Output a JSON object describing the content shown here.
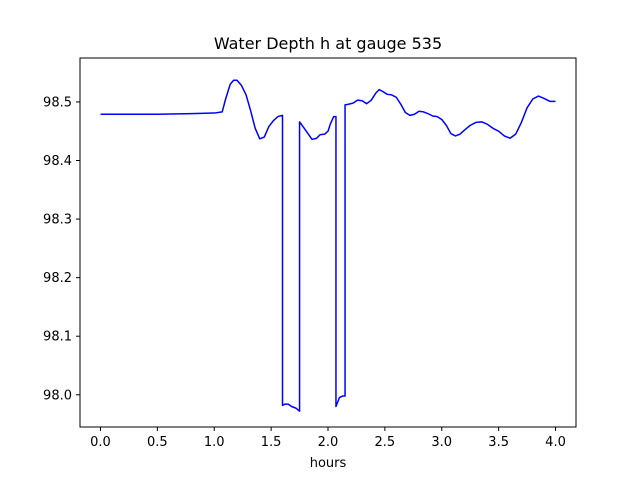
{
  "chart_data": {
    "type": "line",
    "title": "Water Depth h at gauge 535",
    "xlabel": "hours",
    "ylabel": "",
    "xlim": [
      -0.18,
      4.18
    ],
    "ylim": [
      97.945,
      98.575
    ],
    "xticks": [
      0.0,
      0.5,
      1.0,
      1.5,
      2.0,
      2.5,
      3.0,
      3.5,
      4.0
    ],
    "xtick_labels": [
      "0.0",
      "0.5",
      "1.0",
      "1.5",
      "2.0",
      "2.5",
      "3.0",
      "3.5",
      "4.0"
    ],
    "yticks": [
      98.0,
      98.1,
      98.2,
      98.3,
      98.4,
      98.5
    ],
    "ytick_labels": [
      "98.0",
      "98.1",
      "98.2",
      "98.3",
      "98.4",
      "98.5"
    ],
    "grid": false,
    "series": [
      {
        "color": "#0000ff",
        "x": [
          0.0,
          0.5,
          0.8,
          1.0,
          1.07,
          1.1,
          1.14,
          1.17,
          1.2,
          1.24,
          1.28,
          1.32,
          1.36,
          1.4,
          1.44,
          1.48,
          1.52,
          1.56,
          1.6,
          1.6,
          1.62,
          1.65,
          1.68,
          1.72,
          1.75,
          1.75,
          1.78,
          1.82,
          1.86,
          1.9,
          1.93,
          1.97,
          2.0,
          2.02,
          2.05,
          2.07,
          2.07,
          2.08,
          2.1,
          2.13,
          2.15,
          2.15,
          2.18,
          2.22,
          2.26,
          2.3,
          2.34,
          2.38,
          2.42,
          2.45,
          2.48,
          2.52,
          2.56,
          2.6,
          2.64,
          2.68,
          2.72,
          2.76,
          2.8,
          2.84,
          2.88,
          2.92,
          2.96,
          3.0,
          3.04,
          3.08,
          3.12,
          3.16,
          3.2,
          3.25,
          3.3,
          3.35,
          3.4,
          3.45,
          3.5,
          3.55,
          3.6,
          3.65,
          3.7,
          3.75,
          3.8,
          3.85,
          3.9,
          3.95,
          4.0
        ],
        "y": [
          98.479,
          98.479,
          98.48,
          98.481,
          98.483,
          98.505,
          98.53,
          98.537,
          98.537,
          98.528,
          98.512,
          98.485,
          98.455,
          98.437,
          98.44,
          98.458,
          98.468,
          98.475,
          98.477,
          97.982,
          97.984,
          97.984,
          97.98,
          97.977,
          97.972,
          98.466,
          98.458,
          98.447,
          98.436,
          98.438,
          98.444,
          98.445,
          98.45,
          98.462,
          98.475,
          98.475,
          97.98,
          97.985,
          97.995,
          97.998,
          97.998,
          98.495,
          98.496,
          98.498,
          98.503,
          98.502,
          98.497,
          98.503,
          98.515,
          98.521,
          98.518,
          98.513,
          98.512,
          98.508,
          98.496,
          98.482,
          98.477,
          98.479,
          98.484,
          98.483,
          98.48,
          98.476,
          98.475,
          98.47,
          98.46,
          98.446,
          98.442,
          98.445,
          98.452,
          98.46,
          98.465,
          98.466,
          98.462,
          98.455,
          98.45,
          98.442,
          98.438,
          98.445,
          98.465,
          98.49,
          98.505,
          98.51,
          98.506,
          98.501,
          98.501
        ]
      }
    ]
  }
}
